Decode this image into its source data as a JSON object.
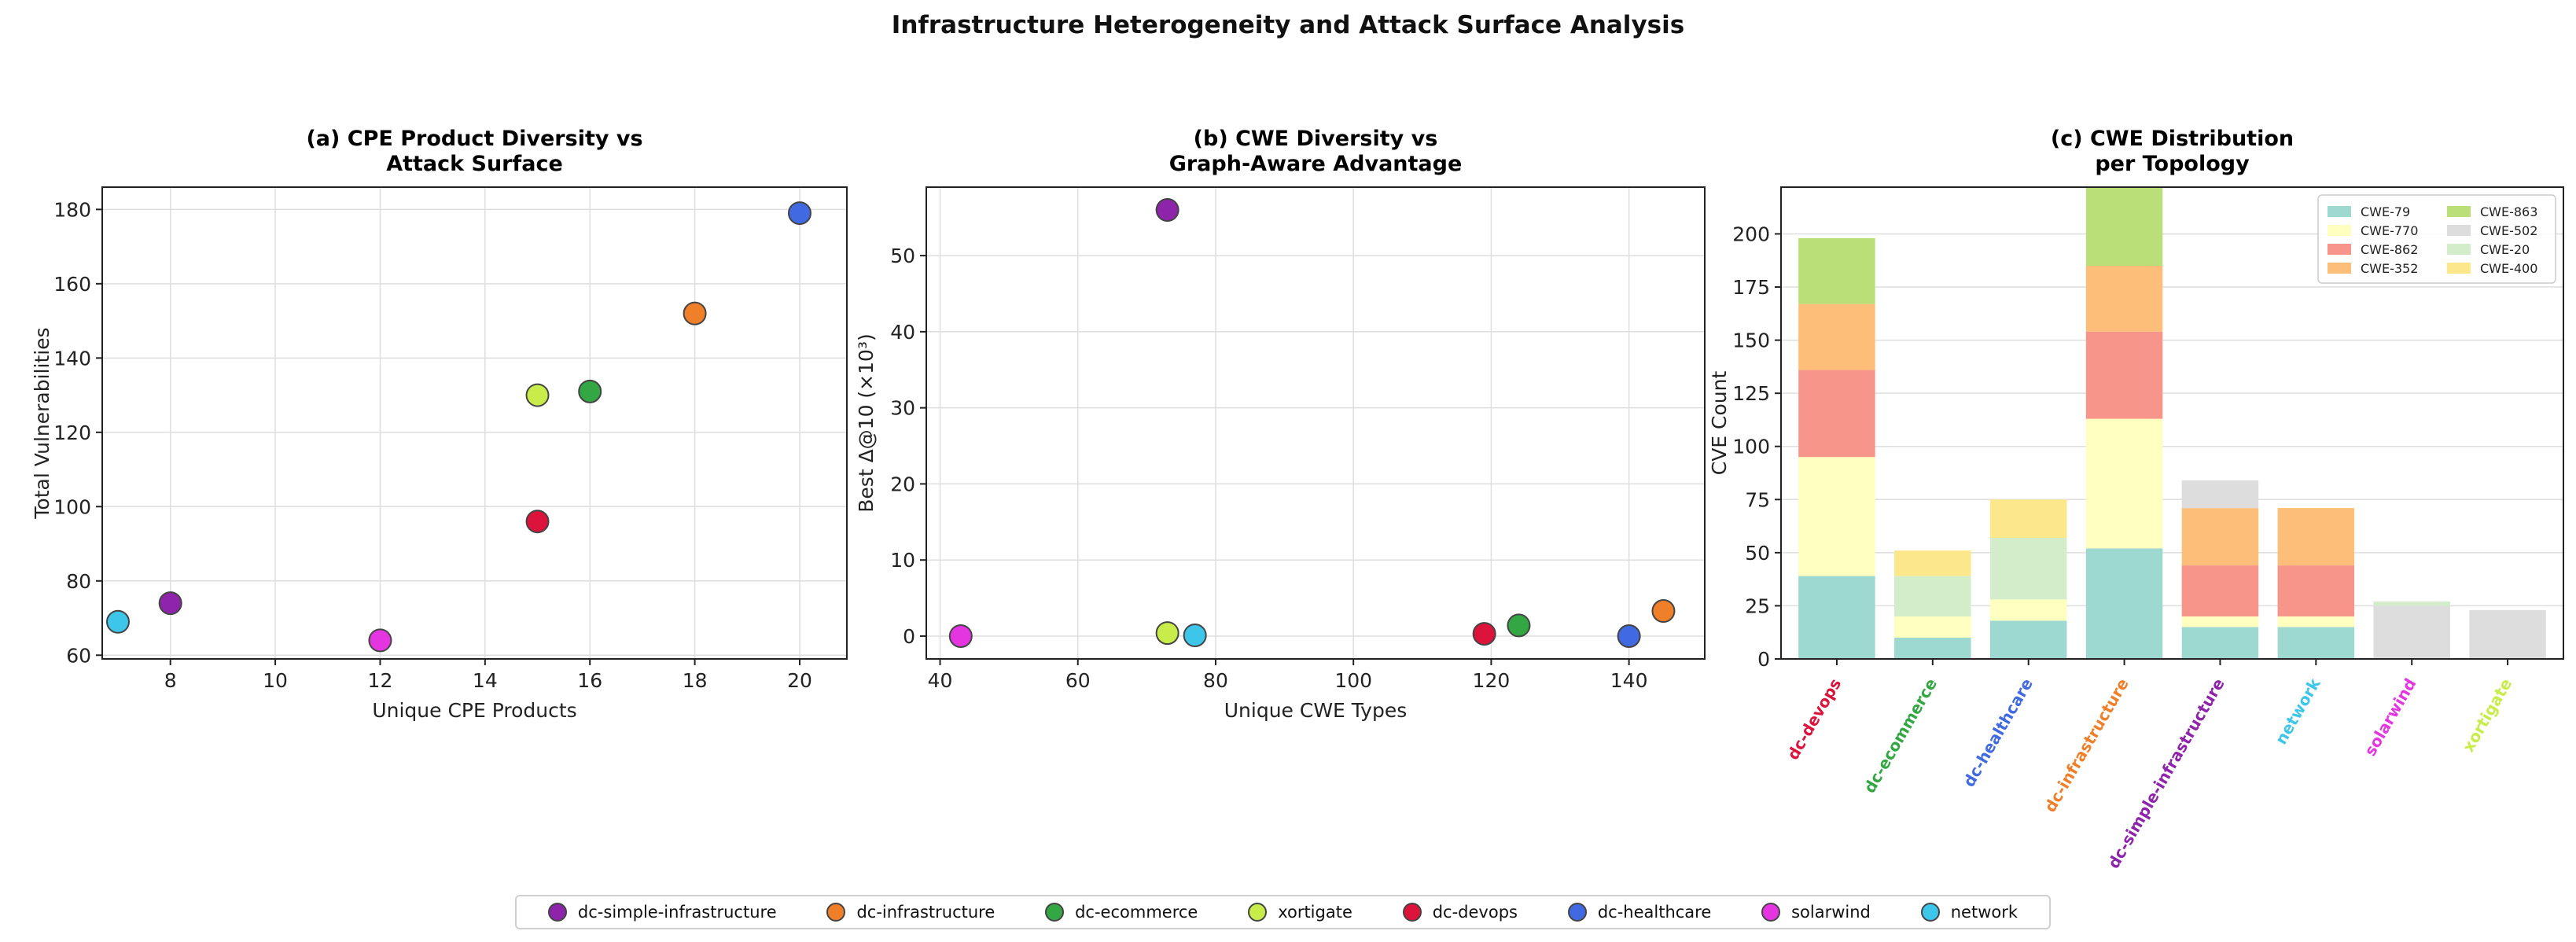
{
  "figure": {
    "title": "Infrastructure Heterogeneity and Attack Surface Analysis"
  },
  "topology_colors": {
    "dc-simple-infrastructure": "#8e24aa",
    "dc-infrastructure": "#f07f2a",
    "dc-ecommerce": "#33a744",
    "xortigate": "#c8ec4a",
    "dc-devops": "#dc143c",
    "dc-healthcare": "#4169e1",
    "solarwind": "#e535e0",
    "network": "#3ec6ea"
  },
  "legend": {
    "items": [
      {
        "label": "dc-simple-infrastructure",
        "color": "#8e24aa"
      },
      {
        "label": "dc-infrastructure",
        "color": "#f07f2a"
      },
      {
        "label": "dc-ecommerce",
        "color": "#33a744"
      },
      {
        "label": "xortigate",
        "color": "#c8ec4a"
      },
      {
        "label": "dc-devops",
        "color": "#dc143c"
      },
      {
        "label": "dc-healthcare",
        "color": "#4169e1"
      },
      {
        "label": "solarwind",
        "color": "#e535e0"
      },
      {
        "label": "network",
        "color": "#3ec6ea"
      }
    ]
  },
  "chart_data": [
    {
      "type": "scatter",
      "title_lines": [
        "(a) CPE Product Diversity vs",
        "Attack Surface"
      ],
      "xlabel": "Unique CPE Products",
      "ylabel": "Total Vulnerabilities",
      "xlim": [
        6.7,
        20.9
      ],
      "ylim": [
        59,
        186
      ],
      "xticks": [
        8,
        10,
        12,
        14,
        16,
        18,
        20
      ],
      "yticks": [
        60,
        80,
        100,
        120,
        140,
        160,
        180
      ],
      "grid": true,
      "points": [
        {
          "name": "network",
          "x": 7,
          "y": 69
        },
        {
          "name": "dc-simple-infrastructure",
          "x": 8,
          "y": 74
        },
        {
          "name": "solarwind",
          "x": 12,
          "y": 64
        },
        {
          "name": "dc-devops",
          "x": 15,
          "y": 96
        },
        {
          "name": "xortigate",
          "x": 15,
          "y": 130
        },
        {
          "name": "dc-ecommerce",
          "x": 16,
          "y": 131
        },
        {
          "name": "dc-infrastructure",
          "x": 18,
          "y": 152
        },
        {
          "name": "dc-healthcare",
          "x": 20,
          "y": 179
        }
      ]
    },
    {
      "type": "scatter",
      "title_lines": [
        "(b) CWE Diversity vs",
        "Graph-Aware Advantage"
      ],
      "xlabel": "Unique CWE Types",
      "ylabel": "Best Δ@10 (×10³)",
      "xlim": [
        38,
        151
      ],
      "ylim": [
        -3,
        59
      ],
      "xticks": [
        40,
        60,
        80,
        100,
        120,
        140
      ],
      "yticks": [
        0,
        10,
        20,
        30,
        40,
        50
      ],
      "grid": true,
      "points": [
        {
          "name": "solarwind",
          "x": 43,
          "y": 0
        },
        {
          "name": "dc-simple-infrastructure",
          "x": 73,
          "y": 56
        },
        {
          "name": "xortigate",
          "x": 73,
          "y": 0.4
        },
        {
          "name": "network",
          "x": 77,
          "y": 0.1
        },
        {
          "name": "dc-devops",
          "x": 119,
          "y": 0.3
        },
        {
          "name": "dc-ecommerce",
          "x": 124,
          "y": 1.4
        },
        {
          "name": "dc-healthcare",
          "x": 140,
          "y": 0
        },
        {
          "name": "dc-infrastructure",
          "x": 145,
          "y": 3.3
        }
      ]
    },
    {
      "type": "bar",
      "stacked": true,
      "title_lines": [
        "(c) CWE Distribution",
        "per Topology"
      ],
      "xlabel": "",
      "ylabel": "CVE Count",
      "ylim": [
        0,
        222
      ],
      "yticks": [
        0,
        25,
        50,
        75,
        100,
        125,
        150,
        175,
        200
      ],
      "grid": true,
      "legend_position": "top-right",
      "categories": [
        "dc-devops",
        "dc-ecommerce",
        "dc-healthcare",
        "dc-infrastructure",
        "dc-simple-infrastructure",
        "network",
        "solarwind",
        "xortigate"
      ],
      "series": [
        {
          "name": "CWE-79",
          "color": "#9dd9d0",
          "values": [
            39,
            10,
            18,
            52,
            15,
            15,
            0,
            0
          ]
        },
        {
          "name": "CWE-770",
          "color": "#ffffbf",
          "values": [
            56,
            10,
            10,
            61,
            5,
            5,
            0,
            0
          ]
        },
        {
          "name": "CWE-862",
          "color": "#f7958a",
          "values": [
            41,
            0,
            0,
            41,
            24,
            24,
            0,
            0
          ]
        },
        {
          "name": "CWE-352",
          "color": "#fdbe7a",
          "values": [
            31,
            0,
            0,
            31,
            27,
            27,
            0,
            0
          ]
        },
        {
          "name": "CWE-863",
          "color": "#badf78",
          "values": [
            31,
            0,
            0,
            37,
            0,
            0,
            0,
            0
          ]
        },
        {
          "name": "CWE-502",
          "color": "#dddddd",
          "values": [
            0,
            0,
            0,
            0,
            13,
            0,
            25,
            23
          ]
        },
        {
          "name": "CWE-20",
          "color": "#d3ecc9",
          "values": [
            0,
            19,
            29,
            0,
            0,
            0,
            2,
            0
          ]
        },
        {
          "name": "CWE-400",
          "color": "#fce88a",
          "values": [
            0,
            12,
            18,
            0,
            0,
            0,
            0,
            0
          ]
        }
      ],
      "legend_columns": [
        [
          "CWE-79",
          "CWE-770",
          "CWE-862",
          "CWE-352"
        ],
        [
          "CWE-863",
          "CWE-502",
          "CWE-20",
          "CWE-400"
        ]
      ]
    }
  ]
}
